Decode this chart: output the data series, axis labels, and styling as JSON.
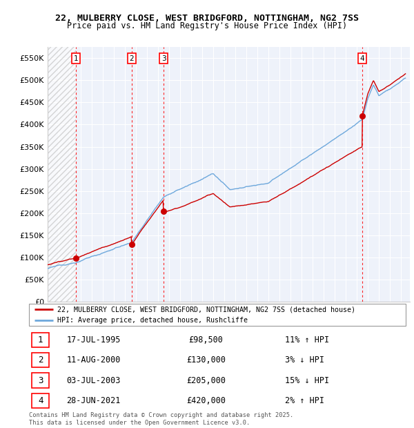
{
  "title_line1": "22, MULBERRY CLOSE, WEST BRIDGFORD, NOTTINGHAM, NG2 7SS",
  "title_line2": "Price paid vs. HM Land Registry's House Price Index (HPI)",
  "ylim": [
    0,
    575000
  ],
  "yticks": [
    0,
    50000,
    100000,
    150000,
    200000,
    250000,
    300000,
    350000,
    400000,
    450000,
    500000,
    550000
  ],
  "ytick_labels": [
    "£0",
    "£50K",
    "£100K",
    "£150K",
    "£200K",
    "£250K",
    "£300K",
    "£350K",
    "£400K",
    "£450K",
    "£500K",
    "£550K"
  ],
  "xlim_start": 1993.0,
  "xlim_end": 2025.8,
  "purchases": [
    {
      "label": "1",
      "date_year": 1995.54,
      "price": 98500
    },
    {
      "label": "2",
      "date_year": 2000.61,
      "price": 130000
    },
    {
      "label": "3",
      "date_year": 2003.5,
      "price": 205000
    },
    {
      "label": "4",
      "date_year": 2021.49,
      "price": 420000
    }
  ],
  "hpi_color": "#6EA8DC",
  "price_color": "#CC0000",
  "legend_label_price": "22, MULBERRY CLOSE, WEST BRIDGFORD, NOTTINGHAM, NG2 7SS (detached house)",
  "legend_label_hpi": "HPI: Average price, detached house, Rushcliffe",
  "table_entries": [
    {
      "num": "1",
      "date": "17-JUL-1995",
      "price": "£98,500",
      "hpi": "11% ↑ HPI"
    },
    {
      "num": "2",
      "date": "11-AUG-2000",
      "price": "£130,000",
      "hpi": "3% ↓ HPI"
    },
    {
      "num": "3",
      "date": "03-JUL-2003",
      "price": "£205,000",
      "hpi": "15% ↓ HPI"
    },
    {
      "num": "4",
      "date": "28-JUN-2021",
      "price": "£420,000",
      "hpi": "2% ↑ HPI"
    }
  ],
  "footer": "Contains HM Land Registry data © Crown copyright and database right 2025.\nThis data is licensed under the Open Government Licence v3.0.",
  "plot_bg_color": "#EEF2FA",
  "grid_color": "#ffffff"
}
